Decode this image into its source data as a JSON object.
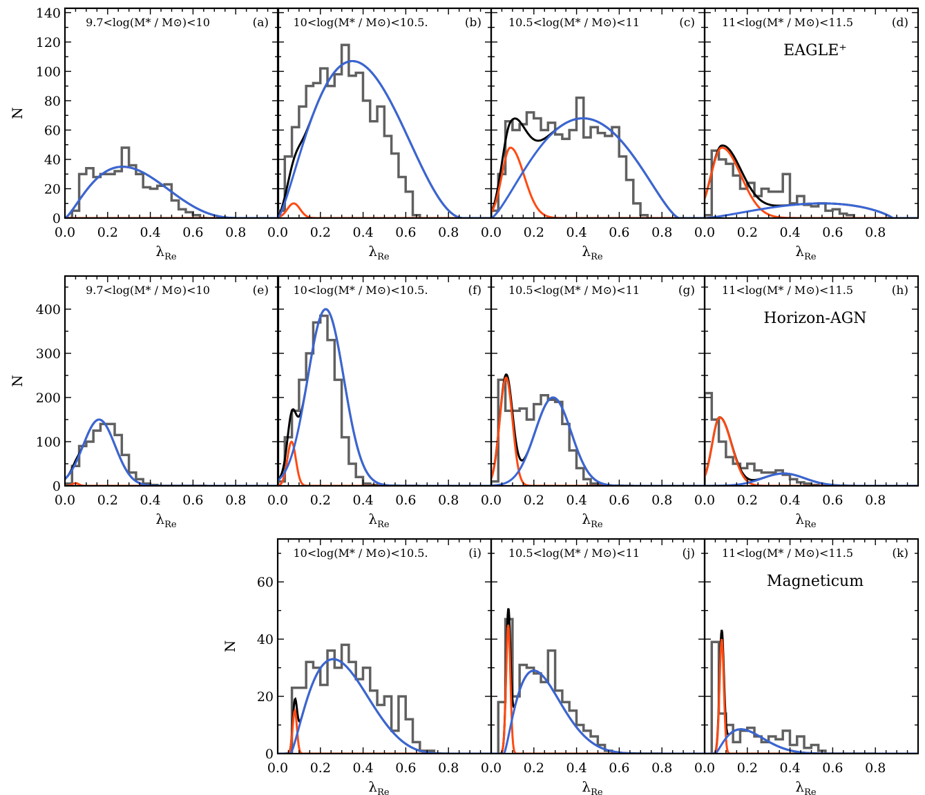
{
  "colors": {
    "histogram": "#606060",
    "total_fit": "#000000",
    "slow_component": "#ff4a12",
    "fast_component": "#3a66d6",
    "frame": "#000000"
  },
  "axis_text": {
    "xlabel_main": "λ",
    "xlabel_sub": "Re",
    "ylabel": "N"
  },
  "chart_data": [
    {
      "type": "bar",
      "id": "a",
      "row": 0,
      "col": 0,
      "tag": "(a)",
      "label": "9.7<log(M* / M⊙)<10",
      "sim": "",
      "xlim": [
        0,
        1
      ],
      "ylim": [
        0,
        143
      ],
      "xticks": [
        "0.0",
        "0.2",
        "0.4",
        "0.6",
        "0.8"
      ],
      "xtickvals": [
        0,
        0.2,
        0.4,
        0.6,
        0.8
      ],
      "yticks": [
        "0",
        "20",
        "40",
        "60",
        "80",
        "100",
        "120",
        "140"
      ],
      "ytickvals": [
        0,
        20,
        40,
        60,
        80,
        100,
        120,
        140
      ],
      "hist": {
        "x0": 0.0,
        "width": 0.0333,
        "values": [
          0,
          5,
          30,
          34,
          28,
          30,
          30,
          32,
          48,
          36,
          30,
          21,
          20,
          22,
          23,
          12,
          6,
          4,
          2,
          0
        ]
      },
      "slow": {
        "mu": 0.08,
        "sigma": 0.03,
        "amp": 0,
        "right_tail": 1
      },
      "fast": {
        "amp": 35,
        "peak": 0.27,
        "end": 0.83,
        "shape": "beta"
      }
    },
    {
      "type": "bar",
      "id": "b",
      "row": 0,
      "col": 1,
      "tag": "(b)",
      "label": "10<log(M* / M⊙)<10.5.",
      "sim": "",
      "xlim": [
        0,
        1
      ],
      "ylim": [
        0,
        143
      ],
      "xticks": [
        "0.0",
        "0.2",
        "0.4",
        "0.6",
        "0.8"
      ],
      "xtickvals": [
        0,
        0.2,
        0.4,
        0.6,
        0.8
      ],
      "yticks": [],
      "ytickvals": [],
      "hist": {
        "x0": 0.0,
        "width": 0.0333,
        "values": [
          5,
          42,
          62,
          76,
          90,
          92,
          102,
          90,
          98,
          118,
          97,
          99,
          80,
          66,
          76,
          56,
          44,
          28,
          18,
          2
        ]
      },
      "slow": {
        "mu": 0.075,
        "sigma": 0.03,
        "amp": 10,
        "right_tail": 1
      },
      "fast": {
        "amp": 107,
        "peak": 0.35,
        "end": 0.87,
        "shape": "beta"
      }
    },
    {
      "type": "bar",
      "id": "c",
      "row": 0,
      "col": 2,
      "tag": "(c)",
      "label": "10.5<log(M* / M⊙)<11",
      "sim": "",
      "xlim": [
        0,
        1
      ],
      "ylim": [
        0,
        143
      ],
      "xticks": [
        "0.0",
        "0.2",
        "0.4",
        "0.6",
        "0.8"
      ],
      "xtickvals": [
        0,
        0.2,
        0.4,
        0.6,
        0.8
      ],
      "yticks": [],
      "ytickvals": [],
      "hist": {
        "x0": 0.0,
        "width": 0.0333,
        "values": [
          5,
          30,
          66,
          60,
          64,
          72,
          68,
          60,
          65,
          57,
          54,
          60,
          82,
          55,
          62,
          58,
          56,
          62,
          42,
          26,
          10,
          2
        ]
      },
      "slow": {
        "mu": 0.09,
        "sigma": 0.04,
        "amp": 48,
        "right_tail": 1.6
      },
      "fast": {
        "amp": 68,
        "peak": 0.43,
        "end": 0.88,
        "shape": "beta"
      }
    },
    {
      "type": "bar",
      "id": "d",
      "row": 0,
      "col": 3,
      "tag": "(d)",
      "label": "11<log(M* / M⊙)<11.5",
      "sim": "EAGLE⁺",
      "xlim": [
        0,
        1
      ],
      "ylim": [
        0,
        143
      ],
      "xticks": [
        "0.0",
        "0.2",
        "0.4",
        "0.6",
        "0.8"
      ],
      "xtickvals": [
        0,
        0.2,
        0.4,
        0.6,
        0.8
      ],
      "yticks": [],
      "ytickvals": [],
      "hist": {
        "x0": 0.0,
        "width": 0.0333,
        "values": [
          2,
          46,
          40,
          37,
          29,
          20,
          24,
          15,
          20,
          18,
          18,
          30,
          10,
          15,
          9,
          8,
          10,
          5,
          6,
          3,
          2
        ]
      },
      "slow": {
        "mu": 0.08,
        "sigma": 0.05,
        "amp": 48,
        "right_tail": 1.8
      },
      "fast": {
        "amp": 10,
        "peak": 0.55,
        "end": 0.88,
        "shape": "beta"
      }
    },
    {
      "type": "bar",
      "id": "e",
      "row": 1,
      "col": 0,
      "tag": "(e)",
      "label": "9.7<log(M* / M⊙)<10",
      "sim": "",
      "xlim": [
        0,
        1
      ],
      "ylim": [
        0,
        475
      ],
      "xticks": [
        "0.0",
        "0.2",
        "0.4",
        "0.6",
        "0.8"
      ],
      "xtickvals": [
        0,
        0.2,
        0.4,
        0.6,
        0.8
      ],
      "yticks": [
        "0",
        "100",
        "200",
        "300",
        "400"
      ],
      "ytickvals": [
        0,
        100,
        200,
        300,
        400
      ],
      "hist": {
        "x0": 0.0,
        "width": 0.0333,
        "values": [
          5,
          45,
          90,
          100,
          125,
          140,
          140,
          115,
          70,
          30,
          15,
          5,
          2,
          0,
          0,
          0,
          0,
          0,
          0,
          0
        ]
      },
      "slow": {
        "mu": 0.05,
        "sigma": 0.015,
        "amp": 6,
        "right_tail": 1
      },
      "fast": {
        "amp": 150,
        "peak": 0.16,
        "end": 0.62,
        "shape": "gauss",
        "sigma": 0.075
      }
    },
    {
      "type": "bar",
      "id": "f",
      "row": 1,
      "col": 1,
      "tag": "(f)",
      "label": "10<log(M* / M⊙)<10.5.",
      "sim": "",
      "xlim": [
        0,
        1
      ],
      "ylim": [
        0,
        475
      ],
      "xticks": [
        "0.0",
        "0.2",
        "0.4",
        "0.6",
        "0.8"
      ],
      "xtickvals": [
        0,
        0.2,
        0.4,
        0.6,
        0.8
      ],
      "yticks": [],
      "ytickvals": [],
      "hist": {
        "x0": 0.0,
        "width": 0.0333,
        "values": [
          10,
          110,
          170,
          240,
          300,
          370,
          385,
          330,
          240,
          110,
          50,
          20,
          5,
          2,
          0,
          0,
          0,
          0,
          0,
          0
        ]
      },
      "slow": {
        "mu": 0.065,
        "sigma": 0.02,
        "amp": 100,
        "right_tail": 1
      },
      "fast": {
        "amp": 400,
        "peak": 0.225,
        "end": 0.7,
        "shape": "gauss",
        "sigma": 0.085
      }
    },
    {
      "type": "bar",
      "id": "g",
      "row": 1,
      "col": 2,
      "tag": "(g)",
      "label": "10.5<log(M* / M⊙)<11",
      "sim": "",
      "xlim": [
        0,
        1
      ],
      "ylim": [
        0,
        475
      ],
      "xticks": [
        "0.0",
        "0.2",
        "0.4",
        "0.6",
        "0.8"
      ],
      "xtickvals": [
        0,
        0.2,
        0.4,
        0.6,
        0.8
      ],
      "yticks": [],
      "ytickvals": [],
      "hist": {
        "x0": 0.0,
        "width": 0.0333,
        "values": [
          10,
          240,
          170,
          170,
          175,
          150,
          185,
          205,
          195,
          190,
          140,
          80,
          40,
          15,
          5,
          2,
          0,
          0,
          0,
          0
        ]
      },
      "slow": {
        "mu": 0.07,
        "sigma": 0.03,
        "amp": 245,
        "right_tail": 1
      },
      "fast": {
        "amp": 200,
        "peak": 0.29,
        "end": 0.75,
        "shape": "gauss",
        "sigma": 0.085
      }
    },
    {
      "type": "bar",
      "id": "h",
      "row": 1,
      "col": 3,
      "tag": "(h)",
      "label": "11<log(M* / M⊙)<11.5",
      "sim": "Horizon-AGN",
      "xlim": [
        0,
        1
      ],
      "ylim": [
        0,
        475
      ],
      "xticks": [
        "0.0",
        "0.2",
        "0.4",
        "0.6",
        "0.8"
      ],
      "xtickvals": [
        0,
        0.2,
        0.4,
        0.6,
        0.8
      ],
      "yticks": [],
      "ytickvals": [],
      "hist": {
        "x0": 0.0,
        "width": 0.0333,
        "values": [
          210,
          150,
          100,
          65,
          50,
          40,
          50,
          35,
          30,
          30,
          35,
          25,
          15,
          8,
          5,
          2,
          0,
          0,
          0,
          0
        ]
      },
      "slow": {
        "mu": 0.07,
        "sigma": 0.035,
        "amp": 155,
        "right_tail": 1.6
      },
      "fast": {
        "amp": 28,
        "peak": 0.37,
        "end": 0.75,
        "shape": "gauss",
        "sigma": 0.1
      }
    },
    {
      "type": "bar",
      "id": "i",
      "row": 2,
      "col": 1,
      "tag": "(i)",
      "label": "10<log(M* / M⊙)<10.5.",
      "sim": "",
      "xlim": [
        0,
        1
      ],
      "ylim": [
        0,
        75
      ],
      "xticks": [
        "0.0",
        "0.2",
        "0.4",
        "0.6",
        "0.8"
      ],
      "xtickvals": [
        0,
        0.2,
        0.4,
        0.6,
        0.8
      ],
      "yticks": [
        "0",
        "20",
        "40",
        "60"
      ],
      "ytickvals": [
        0,
        20,
        40,
        60
      ],
      "hist": {
        "x0": 0.0333,
        "width": 0.0333,
        "values": [
          0,
          23,
          23,
          32,
          30,
          24,
          36,
          30,
          38,
          32,
          26,
          30,
          22,
          17,
          20,
          8,
          20,
          12,
          4,
          1,
          1,
          0,
          0
        ]
      },
      "slow": {
        "mu": 0.08,
        "sigma": 0.01,
        "amp": 15,
        "right_tail": 1
      },
      "fast": {
        "amp": 33,
        "peak": 0.26,
        "end": 0.82,
        "shape": "beta",
        "start": 0.06
      }
    },
    {
      "type": "bar",
      "id": "j",
      "row": 2,
      "col": 2,
      "tag": "(j)",
      "label": "10.5<log(M* / M⊙)<11",
      "sim": "",
      "xlim": [
        0,
        1
      ],
      "ylim": [
        0,
        75
      ],
      "xticks": [
        "0.0",
        "0.2",
        "0.4",
        "0.6",
        "0.8"
      ],
      "xtickvals": [
        0,
        0.2,
        0.4,
        0.6,
        0.8
      ],
      "yticks": [],
      "ytickvals": [],
      "hist": {
        "x0": 0.0333,
        "width": 0.0333,
        "values": [
          18,
          47,
          20,
          31,
          30,
          28,
          25,
          36,
          22,
          18,
          15,
          10,
          8,
          6,
          3,
          1,
          0,
          0,
          0,
          0,
          0,
          0,
          0
        ]
      },
      "slow": {
        "mu": 0.08,
        "sigma": 0.01,
        "amp": 45,
        "right_tail": 1
      },
      "fast": {
        "amp": 29,
        "peak": 0.2,
        "end": 0.85,
        "shape": "beta",
        "start": 0.06
      }
    },
    {
      "type": "bar",
      "id": "k",
      "row": 2,
      "col": 3,
      "tag": "(k)",
      "label": "11<log(M* / M⊙)<11.5",
      "sim": "Magneticum",
      "xlim": [
        0,
        1
      ],
      "ylim": [
        0,
        75
      ],
      "xticks": [
        "0.0",
        "0.2",
        "0.4",
        "0.6",
        "0.8"
      ],
      "xtickvals": [
        0,
        0.2,
        0.4,
        0.6,
        0.8
      ],
      "yticks": [],
      "ytickvals": [],
      "hist": {
        "x0": 0.0333,
        "width": 0.0333,
        "values": [
          39,
          14,
          10,
          4,
          8,
          9,
          6,
          4,
          6,
          5,
          8,
          3,
          6,
          2,
          3,
          1,
          0,
          0,
          0,
          0,
          0,
          0,
          0
        ]
      },
      "slow": {
        "mu": 0.08,
        "sigma": 0.01,
        "amp": 40,
        "right_tail": 1
      },
      "fast": {
        "amp": 8.5,
        "peak": 0.17,
        "end": 0.7,
        "shape": "beta",
        "start": 0.05
      }
    }
  ]
}
